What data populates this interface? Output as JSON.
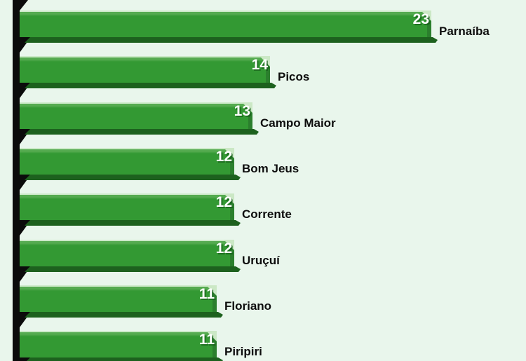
{
  "chart_data": {
    "type": "bar",
    "orientation": "horizontal",
    "title": "",
    "xlabel": "",
    "ylabel": "",
    "categories": [
      "Parnaíba",
      "Picos",
      "Campo Maior",
      "Bom Jeus",
      "Corrente",
      "Uruçuí",
      "Floriano",
      "Piripiri"
    ],
    "values": [
      23,
      14,
      13,
      12,
      12,
      12,
      11,
      11
    ],
    "value_labels": [
      "23",
      "14",
      "13",
      "12",
      "12",
      "12",
      "11",
      "11"
    ],
    "xlim": [
      0,
      24
    ],
    "grid": false,
    "legend": false,
    "value_label_position": "inside-bar-end",
    "category_label_position": "right-of-bar",
    "style": "3d-beveled-bars",
    "cropped_edges": "top and bottom bars partially clipped"
  },
  "colors": {
    "background": "#e9f6ec",
    "bar_face": "#339933",
    "bar_top_highlight": "#cdeac9",
    "bar_top_mid": "#55ab50",
    "bar_bottom_bevel": "#1d611e",
    "bar_end_face": "#2b7f2d",
    "bar_end_chamfer": "#cbe8c5",
    "axis_wall": "#0b0b0b",
    "value_text": "#ffffff",
    "category_text": "#0d0d0d"
  }
}
